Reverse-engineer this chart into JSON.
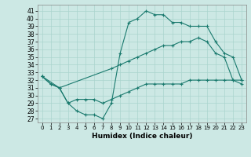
{
  "xlabel": "Humidex (Indice chaleur)",
  "bg_color": "#cce8e4",
  "line_color": "#1a7a6e",
  "grid_color": "#aad4ce",
  "xlim": [
    -0.5,
    23.5
  ],
  "ylim": [
    26.5,
    41.8
  ],
  "xticks": [
    0,
    1,
    2,
    3,
    4,
    5,
    6,
    7,
    8,
    9,
    10,
    11,
    12,
    13,
    14,
    15,
    16,
    17,
    18,
    19,
    20,
    21,
    22,
    23
  ],
  "yticks": [
    27,
    28,
    29,
    30,
    31,
    32,
    33,
    34,
    35,
    36,
    37,
    38,
    39,
    40,
    41
  ],
  "line1_x": [
    0,
    1,
    2,
    3,
    4,
    5,
    6,
    7,
    8,
    9,
    10,
    11,
    12,
    13,
    14,
    15,
    16,
    17,
    18,
    19,
    20,
    21,
    22,
    23
  ],
  "line1_y": [
    32.5,
    31.5,
    31.0,
    29.0,
    28.0,
    27.5,
    27.5,
    27.0,
    29.0,
    35.5,
    39.5,
    40.0,
    41.0,
    40.5,
    40.5,
    39.5,
    39.5,
    39.0,
    39.0,
    39.0,
    37.0,
    35.5,
    35.0,
    32.0
  ],
  "line2_x": [
    0,
    2,
    8,
    9,
    10,
    11,
    12,
    13,
    14,
    15,
    16,
    17,
    18,
    19,
    20,
    21,
    22,
    23
  ],
  "line2_y": [
    32.5,
    31.0,
    33.5,
    34.0,
    34.5,
    35.0,
    35.5,
    36.0,
    36.5,
    36.5,
    37.0,
    37.0,
    37.5,
    37.0,
    35.5,
    35.0,
    32.0,
    31.5
  ],
  "line3_x": [
    0,
    1,
    2,
    3,
    4,
    5,
    6,
    7,
    8,
    9,
    10,
    11,
    12,
    13,
    14,
    15,
    16,
    17,
    18,
    19,
    20,
    21,
    22,
    23
  ],
  "line3_y": [
    32.5,
    31.5,
    31.0,
    29.0,
    29.5,
    29.5,
    29.5,
    29.0,
    29.5,
    30.0,
    30.5,
    31.0,
    31.5,
    31.5,
    31.5,
    31.5,
    31.5,
    32.0,
    32.0,
    32.0,
    32.0,
    32.0,
    32.0,
    32.0
  ],
  "xlabel_fontsize": 6.5,
  "tick_fontsize": 5.5,
  "xtick_fontsize": 5.0
}
